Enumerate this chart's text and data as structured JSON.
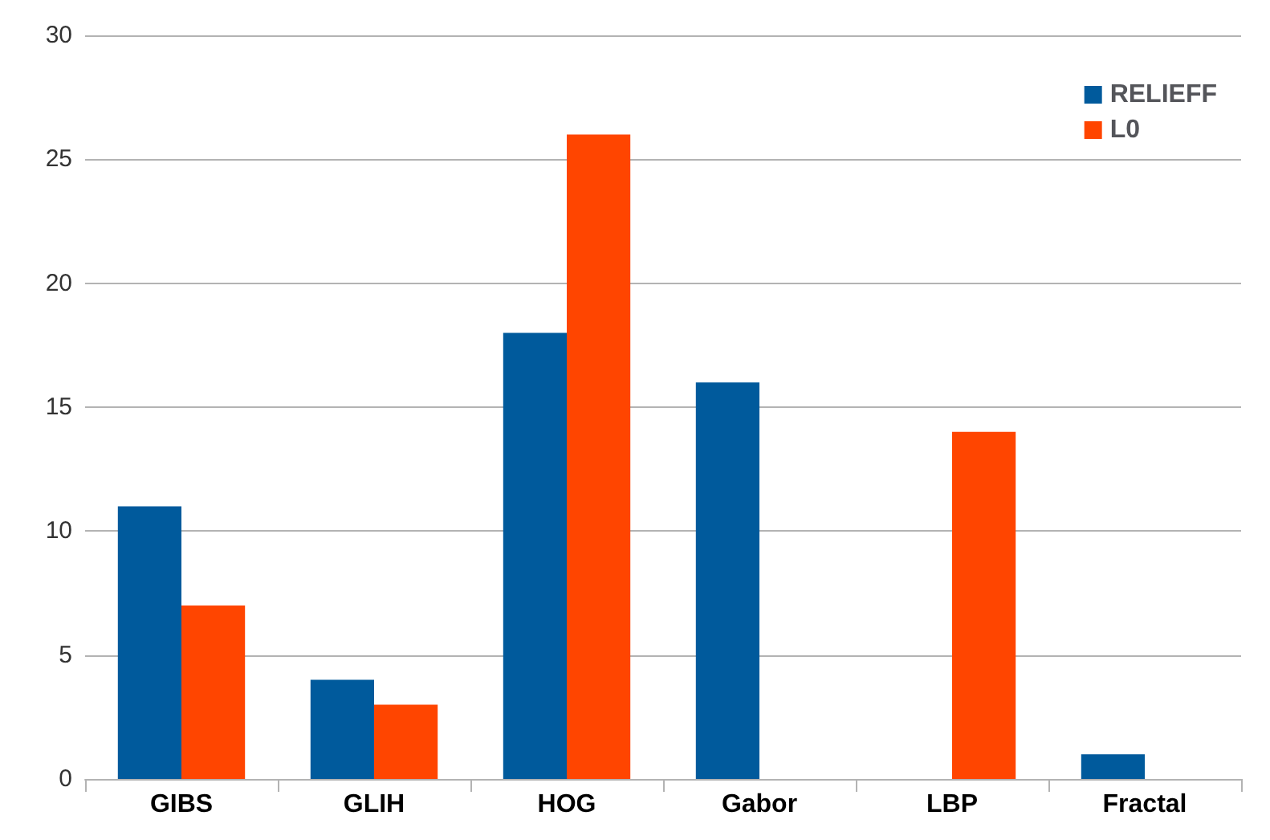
{
  "chart_data": {
    "type": "bar",
    "categories": [
      "GIBS",
      "GLIH",
      "HOG",
      "Gabor",
      "LBP",
      "Fractal"
    ],
    "series": [
      {
        "name": "RELIEFF",
        "color": "#005a9c",
        "values": [
          11,
          4,
          18,
          16,
          0,
          1
        ]
      },
      {
        "name": "L0",
        "color": "#ff4500",
        "values": [
          7,
          3,
          26,
          0,
          14,
          0
        ]
      }
    ],
    "ylim": [
      0,
      30
    ],
    "yticks": [
      0,
      5,
      10,
      15,
      20,
      25,
      30
    ],
    "grid": "y",
    "legend": "top right"
  }
}
